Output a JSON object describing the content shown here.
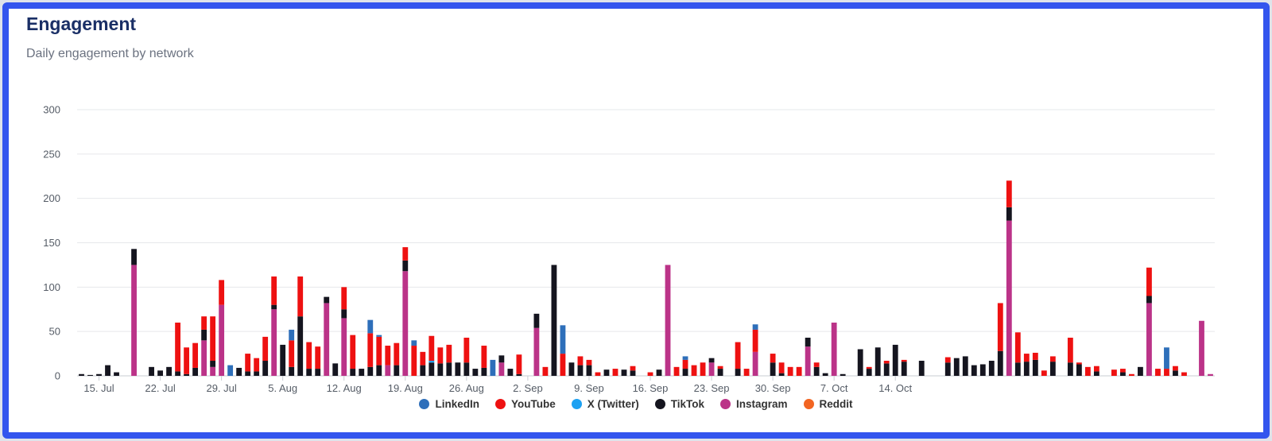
{
  "card": {
    "title": "Engagement",
    "subtitle": "Daily engagement by network"
  },
  "chart_data": {
    "type": "bar",
    "stacked": true,
    "title": "Engagement",
    "subtitle": "Daily engagement by network",
    "xlabel": "",
    "ylabel": "",
    "ylim": [
      0,
      300
    ],
    "yticks": [
      0,
      50,
      100,
      150,
      200,
      250,
      300
    ],
    "grid": true,
    "legend_position": "bottom",
    "x_start": "2024-07-13",
    "x_tick_labels": [
      "15. Jul",
      "22. Jul",
      "29. Jul",
      "5. Aug",
      "12. Aug",
      "19. Aug",
      "26. Aug",
      "2. Sep",
      "9. Sep",
      "16. Sep",
      "23. Sep",
      "30. Sep",
      "7. Oct",
      "14. Oct"
    ],
    "x_tick_dates": [
      "2024-07-15",
      "2024-07-22",
      "2024-07-29",
      "2024-08-05",
      "2024-08-12",
      "2024-08-19",
      "2024-08-26",
      "2024-09-02",
      "2024-09-09",
      "2024-09-16",
      "2024-09-23",
      "2024-09-30",
      "2024-10-07",
      "2024-10-14"
    ],
    "series": [
      {
        "name": "LinkedIn",
        "color": "#2e6fba",
        "values": [
          0,
          0,
          0,
          0,
          0,
          0,
          0,
          0,
          0,
          0,
          0,
          0,
          0,
          0,
          0,
          0,
          0,
          12,
          0,
          0,
          0,
          0,
          0,
          0,
          12,
          0,
          0,
          0,
          0,
          0,
          0,
          0,
          0,
          15,
          2,
          0,
          0,
          0,
          6,
          0,
          0,
          0,
          0,
          0,
          0,
          0,
          0,
          18,
          0,
          0,
          0,
          0,
          0,
          0,
          0,
          32,
          0,
          0,
          0,
          0,
          0,
          0,
          0,
          0,
          0,
          0,
          0,
          0,
          0,
          4,
          0,
          0,
          0,
          0,
          0,
          0,
          0,
          6,
          0,
          0,
          0,
          0,
          0,
          0,
          0,
          0,
          0,
          0,
          0,
          0,
          0,
          0,
          0,
          0,
          0,
          0,
          0,
          0,
          0,
          0,
          0,
          0,
          0,
          0,
          0,
          0,
          0,
          0,
          0,
          0,
          0,
          0,
          0,
          0,
          0,
          0,
          0,
          0,
          0,
          0,
          0,
          0,
          0,
          0,
          24,
          0,
          0,
          0,
          0,
          0
        ]
      },
      {
        "name": "YouTube",
        "color": "#ee1111",
        "values": [
          0,
          0,
          0,
          0,
          0,
          0,
          0,
          0,
          0,
          0,
          0,
          55,
          30,
          28,
          15,
          50,
          28,
          0,
          0,
          20,
          15,
          27,
          32,
          0,
          30,
          45,
          30,
          25,
          0,
          0,
          25,
          38,
          0,
          38,
          32,
          22,
          25,
          15,
          34,
          15,
          28,
          18,
          20,
          0,
          28,
          0,
          25,
          0,
          0,
          0,
          22,
          0,
          0,
          10,
          0,
          25,
          0,
          10,
          6,
          4,
          0,
          8,
          0,
          5,
          0,
          4,
          0,
          0,
          10,
          10,
          12,
          15,
          0,
          3,
          0,
          30,
          8,
          25,
          0,
          10,
          12,
          10,
          10,
          0,
          5,
          0,
          0,
          0,
          0,
          0,
          2,
          0,
          3,
          0,
          2,
          0,
          0,
          0,
          0,
          6,
          0,
          0,
          0,
          0,
          0,
          54,
          30,
          34,
          9,
          8,
          6,
          6,
          0,
          28,
          2,
          10,
          6,
          0,
          7,
          4,
          2,
          0,
          32,
          8,
          8,
          5,
          4,
          0,
          0,
          0
        ]
      },
      {
        "name": "X (Twitter)",
        "color": "#1da1f2",
        "values": [
          0,
          0,
          0,
          0,
          0,
          0,
          0,
          0,
          0,
          0,
          0,
          0,
          0,
          0,
          0,
          0,
          0,
          0,
          0,
          0,
          0,
          0,
          0,
          0,
          0,
          0,
          0,
          0,
          0,
          0,
          0,
          0,
          0,
          0,
          0,
          0,
          0,
          0,
          0,
          0,
          2,
          0,
          0,
          0,
          0,
          0,
          0,
          0,
          0,
          0,
          0,
          0,
          0,
          0,
          0,
          0,
          0,
          0,
          0,
          0,
          0,
          0,
          0,
          0,
          0,
          0,
          0,
          0,
          0,
          0,
          0,
          0,
          0,
          0,
          0,
          0,
          0,
          0,
          0,
          0,
          0,
          0,
          0,
          0,
          0,
          0,
          0,
          0,
          0,
          0,
          0,
          0,
          0,
          0,
          0,
          0,
          0,
          0,
          0,
          0,
          0,
          0,
          0,
          0,
          0,
          0,
          0,
          0,
          0,
          0,
          0,
          0,
          0,
          0,
          0,
          0,
          0,
          0,
          0,
          0,
          0,
          0,
          0,
          0,
          0,
          0,
          0,
          0,
          0,
          0
        ]
      },
      {
        "name": "TikTok",
        "color": "#15151f",
        "values": [
          2,
          1,
          2,
          12,
          4,
          0,
          18,
          0,
          10,
          6,
          10,
          5,
          2,
          9,
          12,
          7,
          0,
          0,
          9,
          5,
          5,
          17,
          5,
          35,
          10,
          67,
          8,
          8,
          7,
          14,
          10,
          8,
          8,
          10,
          12,
          0,
          12,
          12,
          0,
          12,
          15,
          14,
          15,
          15,
          15,
          8,
          9,
          0,
          8,
          8,
          2,
          0,
          16,
          0,
          125,
          0,
          15,
          12,
          12,
          0,
          7,
          0,
          7,
          6,
          0,
          0,
          7,
          0,
          0,
          8,
          0,
          0,
          5,
          8,
          0,
          8,
          0,
          0,
          0,
          15,
          3,
          0,
          0,
          10,
          10,
          3,
          0,
          2,
          0,
          30,
          8,
          32,
          14,
          35,
          16,
          0,
          17,
          0,
          0,
          15,
          20,
          22,
          12,
          13,
          17,
          28,
          15,
          15,
          16,
          18,
          0,
          16,
          0,
          15,
          13,
          0,
          5,
          0,
          0,
          4,
          0,
          10,
          8,
          0,
          0,
          6,
          0,
          0,
          0,
          0
        ]
      },
      {
        "name": "Instagram",
        "color": "#bb3388",
        "values": [
          0,
          0,
          0,
          0,
          0,
          0,
          125,
          0,
          0,
          0,
          0,
          0,
          0,
          0,
          40,
          10,
          80,
          0,
          0,
          0,
          0,
          0,
          75,
          0,
          0,
          0,
          0,
          0,
          82,
          0,
          65,
          0,
          0,
          0,
          0,
          12,
          0,
          118,
          0,
          0,
          0,
          0,
          0,
          0,
          0,
          0,
          0,
          0,
          15,
          0,
          0,
          0,
          54,
          0,
          0,
          0,
          0,
          0,
          0,
          0,
          0,
          0,
          0,
          0,
          0,
          0,
          0,
          125,
          0,
          0,
          0,
          0,
          15,
          0,
          0,
          0,
          0,
          27,
          0,
          0,
          0,
          0,
          0,
          33,
          0,
          0,
          60,
          0,
          0,
          0,
          0,
          0,
          0,
          0,
          0,
          0,
          0,
          0,
          0,
          0,
          0,
          0,
          0,
          0,
          0,
          0,
          175,
          0,
          0,
          0,
          0,
          0,
          0,
          0,
          0,
          0,
          0,
          0,
          0,
          0,
          0,
          0,
          82,
          0,
          0,
          0,
          0,
          0,
          62,
          2
        ]
      },
      {
        "name": "Reddit",
        "color": "#f26522",
        "values": [
          0,
          0,
          0,
          0,
          0,
          0,
          0,
          0,
          0,
          0,
          0,
          0,
          0,
          0,
          0,
          0,
          0,
          0,
          0,
          0,
          0,
          0,
          0,
          0,
          0,
          0,
          0,
          0,
          0,
          0,
          0,
          0,
          0,
          0,
          0,
          0,
          0,
          0,
          0,
          0,
          0,
          0,
          0,
          0,
          0,
          0,
          0,
          0,
          0,
          0,
          0,
          0,
          0,
          0,
          0,
          0,
          0,
          0,
          0,
          0,
          0,
          0,
          0,
          0,
          0,
          0,
          0,
          0,
          0,
          0,
          0,
          0,
          0,
          0,
          0,
          0,
          0,
          0,
          0,
          0,
          0,
          0,
          0,
          0,
          0,
          0,
          0,
          0,
          0,
          0,
          0,
          0,
          0,
          0,
          0,
          0,
          0,
          0,
          0,
          0,
          0,
          0,
          0,
          0,
          0,
          0,
          0,
          0,
          0,
          0,
          0,
          0,
          0,
          0,
          0,
          0,
          0,
          0,
          0,
          0,
          0,
          0,
          0,
          0,
          0,
          0,
          0,
          0,
          0,
          0
        ]
      }
    ]
  }
}
